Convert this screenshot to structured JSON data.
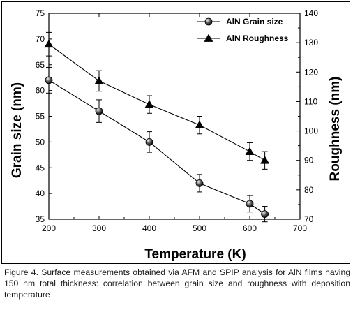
{
  "chart_data": {
    "type": "line",
    "x": [
      200,
      300,
      400,
      500,
      600,
      630
    ],
    "xlabel": "Temperature (K)",
    "ylabel": "Grain size (nm)",
    "y2label": "Roughness (nm)",
    "xlim": [
      200,
      700
    ],
    "ylim": [
      35,
      75
    ],
    "y2lim": [
      70,
      140
    ],
    "xticks": [
      200,
      300,
      400,
      500,
      600,
      700
    ],
    "yticks": [
      35,
      40,
      45,
      50,
      55,
      60,
      65,
      70,
      75
    ],
    "y2ticks": [
      70,
      80,
      90,
      100,
      110,
      120,
      130,
      140
    ],
    "legend_position": "top-right",
    "grid": false,
    "series": [
      {
        "name": "AlN Grain size",
        "axis": "left",
        "marker": "sphere",
        "values": [
          62,
          56,
          50,
          42,
          38,
          36
        ],
        "errors": [
          2.5,
          2.2,
          2.0,
          1.7,
          1.6,
          1.5
        ]
      },
      {
        "name": "AlN Roughness",
        "axis": "right",
        "marker": "triangle",
        "values": [
          129.5,
          117,
          109,
          102,
          93,
          90
        ],
        "errors": [
          4.0,
          3.5,
          3.0,
          3.0,
          3.0,
          3.0
        ]
      }
    ]
  },
  "caption": "Figure 4. Surface measurements obtained via AFM and SPIP analysis for AlN films having 150 nm total thickness: correlation between grain size and roughness with deposition temperature"
}
